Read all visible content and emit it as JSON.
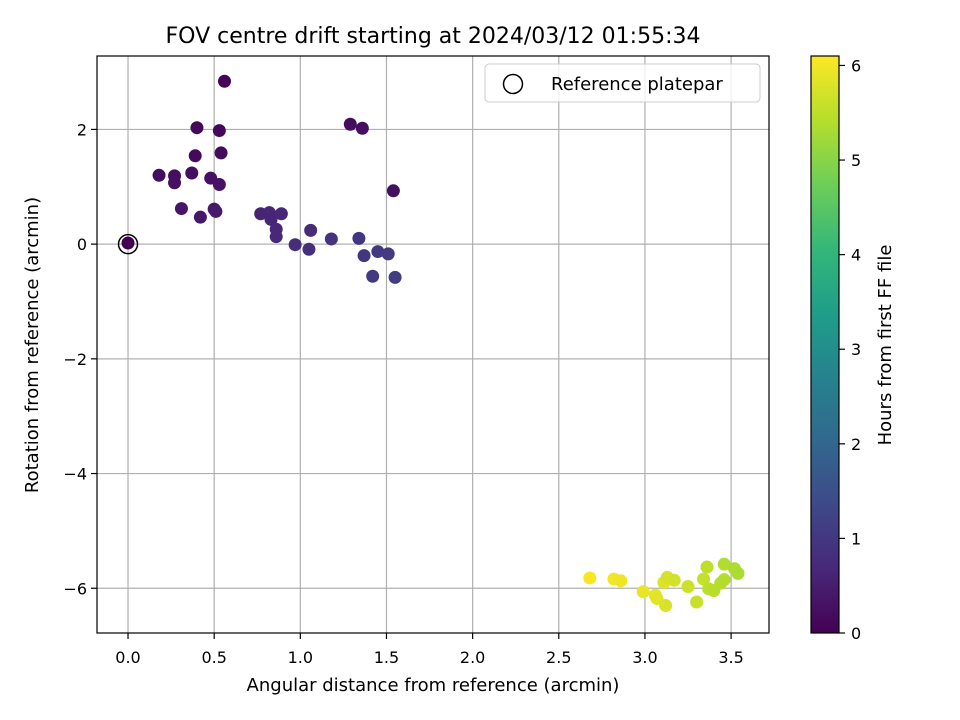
{
  "chart_data": {
    "type": "scatter",
    "title": "FOV centre drift starting at 2024/03/12 01:55:34",
    "xlabel": "Angular distance from reference (arcmin)",
    "ylabel": "Rotation from reference (arcmin)",
    "xlim": [
      -0.18,
      3.72
    ],
    "ylim": [
      -6.78,
      3.28
    ],
    "xticks": [
      0.0,
      0.5,
      1.0,
      1.5,
      2.0,
      2.5,
      3.0,
      3.5
    ],
    "xtick_labels": [
      "0.0",
      "0.5",
      "1.0",
      "1.5",
      "2.0",
      "2.5",
      "3.0",
      "3.5"
    ],
    "yticks": [
      -6,
      -4,
      -2,
      0,
      2
    ],
    "ytick_labels": [
      "−6",
      "−4",
      "−2",
      "0",
      "2"
    ],
    "grid": true,
    "legend": {
      "position": "top-right",
      "entries": [
        "Reference platepar"
      ]
    },
    "reference": {
      "x": 0.0,
      "y": 0.0
    },
    "colorbar": {
      "label": "Hours from first FF file",
      "colormap": "viridis",
      "range": [
        0,
        6.1
      ],
      "ticks": [
        0,
        1,
        2,
        3,
        4,
        5,
        6
      ],
      "tick_labels": [
        "0",
        "1",
        "2",
        "3",
        "4",
        "5",
        "6"
      ]
    },
    "colormap_stops": [
      "#440154",
      "#482878",
      "#3e4989",
      "#31688e",
      "#26828e",
      "#1f9e89",
      "#35b779",
      "#6ece58",
      "#b5de2b",
      "#fde725"
    ],
    "points": [
      {
        "x": 0.0,
        "y": 0.02,
        "h": 0.0
      },
      {
        "x": 0.56,
        "y": 2.84,
        "h": 0.05
      },
      {
        "x": 0.4,
        "y": 2.03,
        "h": 0.1
      },
      {
        "x": 0.53,
        "y": 1.98,
        "h": 0.12
      },
      {
        "x": 0.39,
        "y": 1.54,
        "h": 0.15
      },
      {
        "x": 0.54,
        "y": 1.59,
        "h": 0.17
      },
      {
        "x": 0.18,
        "y": 1.2,
        "h": 0.2
      },
      {
        "x": 0.27,
        "y": 1.19,
        "h": 0.22
      },
      {
        "x": 0.37,
        "y": 1.24,
        "h": 0.24
      },
      {
        "x": 0.27,
        "y": 1.07,
        "h": 0.26
      },
      {
        "x": 0.48,
        "y": 1.15,
        "h": 0.28
      },
      {
        "x": 0.53,
        "y": 1.04,
        "h": 0.3
      },
      {
        "x": 1.29,
        "y": 2.09,
        "h": 0.2
      },
      {
        "x": 1.36,
        "y": 2.02,
        "h": 0.22
      },
      {
        "x": 1.54,
        "y": 0.93,
        "h": 0.25
      },
      {
        "x": 0.31,
        "y": 0.62,
        "h": 0.35
      },
      {
        "x": 0.42,
        "y": 0.47,
        "h": 0.4
      },
      {
        "x": 0.5,
        "y": 0.61,
        "h": 0.42
      },
      {
        "x": 0.51,
        "y": 0.57,
        "h": 0.45
      },
      {
        "x": 0.77,
        "y": 0.53,
        "h": 0.6
      },
      {
        "x": 0.82,
        "y": 0.55,
        "h": 0.62
      },
      {
        "x": 0.83,
        "y": 0.43,
        "h": 0.64
      },
      {
        "x": 0.89,
        "y": 0.53,
        "h": 0.66
      },
      {
        "x": 0.86,
        "y": 0.26,
        "h": 0.68
      },
      {
        "x": 0.86,
        "y": 0.13,
        "h": 0.7
      },
      {
        "x": 1.06,
        "y": 0.24,
        "h": 0.75
      },
      {
        "x": 0.97,
        "y": -0.01,
        "h": 0.8
      },
      {
        "x": 1.05,
        "y": -0.09,
        "h": 0.85
      },
      {
        "x": 1.18,
        "y": 0.09,
        "h": 0.9
      },
      {
        "x": 1.34,
        "y": 0.1,
        "h": 0.95
      },
      {
        "x": 1.37,
        "y": -0.2,
        "h": 1.0
      },
      {
        "x": 1.45,
        "y": -0.13,
        "h": 1.02
      },
      {
        "x": 1.51,
        "y": -0.17,
        "h": 1.05
      },
      {
        "x": 1.42,
        "y": -0.56,
        "h": 1.07
      },
      {
        "x": 1.55,
        "y": -0.58,
        "h": 1.1
      },
      {
        "x": 2.68,
        "y": -5.82,
        "h": 6.05
      },
      {
        "x": 2.82,
        "y": -5.84,
        "h": 6.0
      },
      {
        "x": 2.86,
        "y": -5.87,
        "h": 5.95
      },
      {
        "x": 2.99,
        "y": -6.06,
        "h": 5.9
      },
      {
        "x": 3.06,
        "y": -6.12,
        "h": 5.88
      },
      {
        "x": 3.07,
        "y": -6.18,
        "h": 5.85
      },
      {
        "x": 3.11,
        "y": -5.9,
        "h": 5.8
      },
      {
        "x": 3.12,
        "y": -6.3,
        "h": 5.75
      },
      {
        "x": 3.13,
        "y": -5.81,
        "h": 5.72
      },
      {
        "x": 3.17,
        "y": -5.86,
        "h": 5.7
      },
      {
        "x": 3.25,
        "y": -5.97,
        "h": 5.65
      },
      {
        "x": 3.3,
        "y": -6.24,
        "h": 5.6
      },
      {
        "x": 3.34,
        "y": -5.84,
        "h": 5.55
      },
      {
        "x": 3.36,
        "y": -5.63,
        "h": 5.5
      },
      {
        "x": 3.37,
        "y": -6.01,
        "h": 5.48
      },
      {
        "x": 3.4,
        "y": -6.04,
        "h": 5.45
      },
      {
        "x": 3.44,
        "y": -5.91,
        "h": 5.42
      },
      {
        "x": 3.46,
        "y": -5.85,
        "h": 5.4
      },
      {
        "x": 3.46,
        "y": -5.58,
        "h": 5.38
      },
      {
        "x": 3.52,
        "y": -5.66,
        "h": 5.35
      },
      {
        "x": 3.54,
        "y": -5.74,
        "h": 5.32
      }
    ]
  }
}
